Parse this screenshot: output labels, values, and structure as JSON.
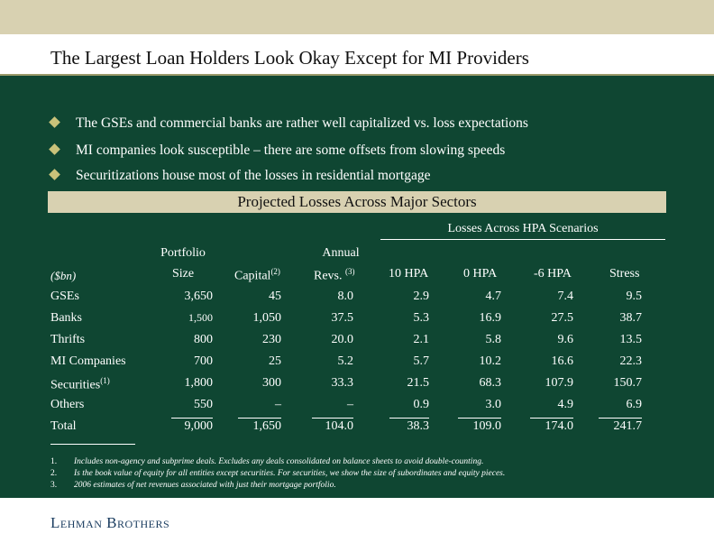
{
  "slide": {
    "title": "The Largest Loan Holders Look Okay Except for MI Providers",
    "bullets": [
      "The GSEs and commercial banks are rather well capitalized vs. loss expectations",
      "MI companies look susceptible – there are some offsets from slowing speeds",
      "Securitizations house most of the losses in residential mortgage"
    ],
    "band_title": "Projected Losses Across Major Sectors",
    "hpa_header": "Losses Across HPA Scenarios",
    "logo": "Lehman Brothers"
  },
  "table": {
    "unit_label": "($bn)",
    "col_portfolio_1": "Portfolio",
    "col_portfolio_2": "Size",
    "col_capital": "Capital",
    "col_capital_sup": "(2)",
    "col_revs_1": "Annual",
    "col_revs_2": "Revs.",
    "col_revs_sup": "(3)",
    "col_hpa10": "10 HPA",
    "col_hpa0": "0 HPA",
    "col_hpa_neg6": "-6 HPA",
    "col_stress": "Stress",
    "rows": [
      {
        "label": "GSEs",
        "sup": "",
        "size": "3,650",
        "capital": "45",
        "revs": "8.0",
        "h10": "2.9",
        "h0": "4.7",
        "hn6": "7.4",
        "stress": "9.5"
      },
      {
        "label": "Banks",
        "sup": "",
        "size": "1,500",
        "capital": "1,050",
        "revs": "37.5",
        "h10": "5.3",
        "h0": "16.9",
        "hn6": "27.5",
        "stress": "38.7"
      },
      {
        "label": "Thrifts",
        "sup": "",
        "size": "800",
        "capital": "230",
        "revs": "20.0",
        "h10": "2.1",
        "h0": "5.8",
        "hn6": "9.6",
        "stress": "13.5"
      },
      {
        "label": "MI Companies",
        "sup": "",
        "size": "700",
        "capital": "25",
        "revs": "5.2",
        "h10": "5.7",
        "h0": "10.2",
        "hn6": "16.6",
        "stress": "22.3"
      },
      {
        "label": "Securities",
        "sup": "(1)",
        "size": "1,800",
        "capital": "300",
        "revs": "33.3",
        "h10": "21.5",
        "h0": "68.3",
        "hn6": "107.9",
        "stress": "150.7"
      },
      {
        "label": "Others",
        "sup": "",
        "size": "550",
        "capital": "–",
        "revs": "–",
        "h10": "0.9",
        "h0": "3.0",
        "hn6": "4.9",
        "stress": "6.9"
      },
      {
        "label": "Total",
        "sup": "",
        "size": "9,000",
        "capital": "1,650",
        "revs": "104.0",
        "h10": "38.3",
        "h0": "109.0",
        "hn6": "174.0",
        "stress": "241.7"
      }
    ]
  },
  "footnotes": [
    {
      "num": "1.",
      "text": "Includes non-agency and subprime deals. Excludes any deals consolidated on balance sheets to avoid double-counting."
    },
    {
      "num": "2.",
      "text": "Is the book value of equity for all entities except securities. For securities, we show the size of subordinates and equity pieces."
    },
    {
      "num": "3.",
      "text": "2006 estimates of net revenues associated with just their mortgage portfolio."
    }
  ]
}
